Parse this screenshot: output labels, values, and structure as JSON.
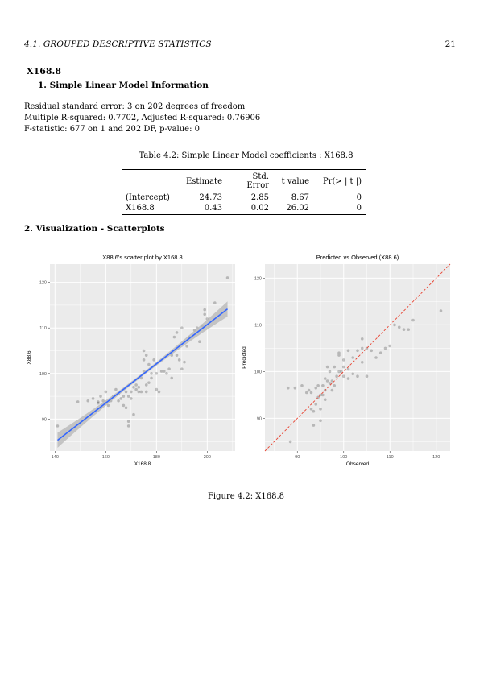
{
  "header": {
    "section": "4.1.   GROUPED DESCRIPTIVE STATISTICS",
    "page_number": "21"
  },
  "section_title": "X168.8",
  "subsection1": "1.  Simple Linear Model Information",
  "model_info": [
    "Residual standard error: 3 on 202 degrees of freedom",
    "Multiple R-squared: 0.7702, Adjusted R-squared: 0.76906",
    "F-statistic: 677 on 1 and 202 DF, p-value: 0"
  ],
  "table": {
    "caption": "Table 4.2: Simple Linear Model coefficients : X168.8",
    "headers": [
      "",
      "Estimate",
      "Std. Error",
      "t value",
      "Pr(> | t |)"
    ],
    "rows": [
      [
        "(Intercept)",
        "24.73",
        "2.85",
        "8.67",
        "0"
      ],
      [
        "X168.8",
        "0.43",
        "0.02",
        "26.02",
        "0"
      ]
    ]
  },
  "subsection2": "2.  Visualization - Scatterplots",
  "figure_caption": "Figure 4.2: X168.8",
  "colors": {
    "panel_bg": "#ebebeb",
    "grid": "#ffffff",
    "fit_line": "#3366ff",
    "ribbon": "#b5b5b5",
    "ref_line": "#e8412f",
    "points": "#000000"
  },
  "chart_data": [
    {
      "type": "scatter",
      "title": "X88.6's scatter plot by X168.8",
      "xlabel": "X168.8",
      "ylabel": "X88.6",
      "xlim": [
        138,
        211
      ],
      "ylim": [
        83,
        124
      ],
      "xticks": [
        140,
        160,
        180,
        200
      ],
      "yticks": [
        90,
        100,
        110,
        120
      ],
      "grid": true,
      "fit": {
        "intercept": 24.73,
        "slope": 0.43,
        "x_range": [
          141,
          208
        ]
      },
      "points": [
        [
          141,
          88.5
        ],
        [
          149,
          93.8
        ],
        [
          153,
          94
        ],
        [
          155,
          94.5
        ],
        [
          157,
          93.5
        ],
        [
          157,
          93.8
        ],
        [
          158,
          95
        ],
        [
          158,
          92.5
        ],
        [
          159,
          94
        ],
        [
          160,
          93.5
        ],
        [
          160,
          96
        ],
        [
          161,
          93
        ],
        [
          162,
          94
        ],
        [
          163,
          95
        ],
        [
          164,
          96.5
        ],
        [
          165,
          94
        ],
        [
          165,
          95.5
        ],
        [
          166,
          94.5
        ],
        [
          167,
          95
        ],
        [
          167,
          93
        ],
        [
          168,
          96
        ],
        [
          168,
          92.5
        ],
        [
          169,
          88.5
        ],
        [
          169,
          89.5
        ],
        [
          169,
          95
        ],
        [
          170,
          94.5
        ],
        [
          170,
          96
        ],
        [
          171,
          91
        ],
        [
          171,
          97
        ],
        [
          172,
          96.5
        ],
        [
          172,
          97.5
        ],
        [
          173,
          96
        ],
        [
          173,
          97
        ],
        [
          174,
          96
        ],
        [
          174,
          99
        ],
        [
          175,
          100.5
        ],
        [
          175,
          105
        ],
        [
          175,
          103
        ],
        [
          176,
          104
        ],
        [
          176,
          97.5
        ],
        [
          176,
          96
        ],
        [
          177,
          98
        ],
        [
          177,
          102
        ],
        [
          178,
          99
        ],
        [
          178,
          100
        ],
        [
          179,
          103
        ],
        [
          180,
          96.5
        ],
        [
          180,
          100
        ],
        [
          181,
          96
        ],
        [
          182,
          100.5
        ],
        [
          183,
          100.5
        ],
        [
          184,
          100
        ],
        [
          185,
          101
        ],
        [
          186,
          104
        ],
        [
          186,
          99
        ],
        [
          187,
          108
        ],
        [
          188,
          109
        ],
        [
          188,
          104
        ],
        [
          189,
          103
        ],
        [
          190,
          110
        ],
        [
          190,
          101
        ],
        [
          191,
          102.5
        ],
        [
          192,
          106
        ],
        [
          193,
          108
        ],
        [
          195,
          109.5
        ],
        [
          196,
          110
        ],
        [
          197,
          107
        ],
        [
          198,
          110.5
        ],
        [
          199,
          114
        ],
        [
          199,
          113
        ],
        [
          200,
          112
        ],
        [
          203,
          115.5
        ],
        [
          208,
          121
        ]
      ]
    },
    {
      "type": "scatter",
      "title": "Predicted vs Observed (X88.6)",
      "xlabel": "Observed",
      "ylabel": "Predicted",
      "xlim": [
        83,
        123
      ],
      "ylim": [
        83,
        123
      ],
      "xticks": [
        90,
        100,
        110,
        120
      ],
      "yticks": [
        90,
        100,
        110,
        120
      ],
      "grid": true,
      "reference_line": {
        "intercept": 0,
        "slope": 1
      },
      "points": [
        [
          88,
          96.5
        ],
        [
          88.5,
          85
        ],
        [
          89.5,
          96.5
        ],
        [
          91,
          97
        ],
        [
          92,
          95.5
        ],
        [
          92.5,
          96
        ],
        [
          93,
          95.5
        ],
        [
          93,
          92
        ],
        [
          93.5,
          91.5
        ],
        [
          93.5,
          88.5
        ],
        [
          94,
          96.5
        ],
        [
          94,
          93
        ],
        [
          94.5,
          94.5
        ],
        [
          94.5,
          97
        ],
        [
          95,
          95
        ],
        [
          95,
          92
        ],
        [
          95,
          89.5
        ],
        [
          95.5,
          97
        ],
        [
          95.5,
          95
        ],
        [
          96,
          98.5
        ],
        [
          96,
          96
        ],
        [
          96,
          94
        ],
        [
          96.5,
          98
        ],
        [
          96.5,
          101
        ],
        [
          97,
          97.5
        ],
        [
          97,
          100
        ],
        [
          97.5,
          98
        ],
        [
          97.5,
          96
        ],
        [
          98,
          97
        ],
        [
          98,
          101
        ],
        [
          98.5,
          99
        ],
        [
          99,
          103.5
        ],
        [
          99,
          100
        ],
        [
          99,
          104
        ],
        [
          99.5,
          100
        ],
        [
          100,
          101
        ],
        [
          100,
          102.5
        ],
        [
          100,
          99
        ],
        [
          101,
          100.5
        ],
        [
          101,
          98.5
        ],
        [
          101,
          104.5
        ],
        [
          102,
          99.5
        ],
        [
          102,
          103
        ],
        [
          103,
          104.5
        ],
        [
          103,
          99
        ],
        [
          104,
          105
        ],
        [
          104,
          102
        ],
        [
          104,
          107
        ],
        [
          105,
          105
        ],
        [
          105,
          99
        ],
        [
          106,
          104.5
        ],
        [
          107,
          103
        ],
        [
          108,
          104
        ],
        [
          109,
          105
        ],
        [
          110,
          105.5
        ],
        [
          111,
          110
        ],
        [
          112,
          109.5
        ],
        [
          113,
          109
        ],
        [
          114,
          109
        ],
        [
          115,
          111
        ],
        [
          121,
          113
        ]
      ]
    }
  ]
}
